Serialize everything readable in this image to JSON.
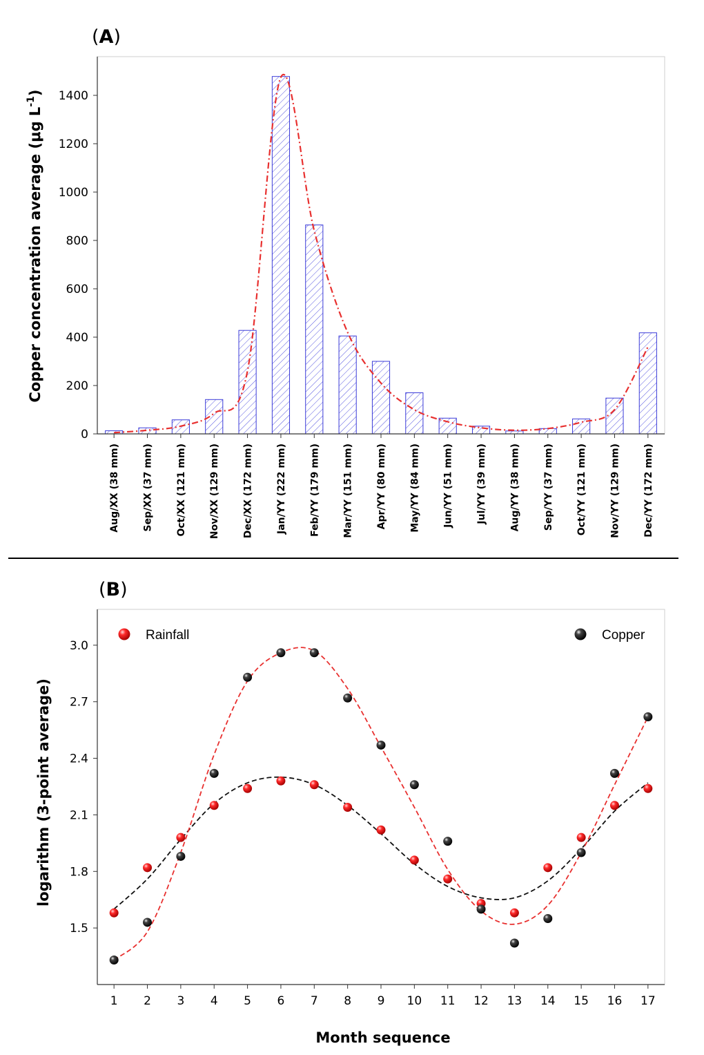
{
  "chart_data": [
    {
      "panel": "A",
      "type": "bar",
      "categories": [
        "Aug/XX (38 mm)",
        "Sep/XX (37 mm)",
        "Oct/XX (121 mm)",
        "Nov/XX (129 mm)",
        "Dec/XX (172 mm)",
        "Jan/YY (222 mm)",
        "Feb/YY (179 mm)",
        "Mar/YY (151 mm)",
        "Apr/YY (80 mm)",
        "May/YY (84 mm)",
        "Jun/YY (51 mm)",
        "Jul/YY (39 mm)",
        "Aug/YY (38 mm)",
        "Sep/YY (37 mm)",
        "Oct/YY (121 mm)",
        "Nov/YY (129 mm)",
        "Dec/YY (172 mm)"
      ],
      "values": [
        13,
        25,
        58,
        142,
        428,
        1478,
        864,
        405,
        300,
        170,
        65,
        32,
        12,
        22,
        62,
        148,
        418
      ],
      "trend": [
        5,
        15,
        32,
        85,
        260,
        1475,
        840,
        420,
        210,
        100,
        50,
        25,
        15,
        22,
        48,
        100,
        360
      ],
      "ylabel": "Copper concentration average (μg L",
      "ylabel_sup": "-1",
      "ylabel_close": ")",
      "ylim": [
        0,
        1560
      ],
      "yticks": [
        0,
        200,
        400,
        600,
        800,
        1000,
        1200,
        1400
      ],
      "colors": {
        "bar": "#3a3ad8",
        "trend": "#e8302f"
      }
    },
    {
      "panel": "B",
      "type": "scatter",
      "x": [
        1,
        2,
        3,
        4,
        5,
        6,
        7,
        8,
        9,
        10,
        11,
        12,
        13,
        14,
        15,
        16,
        17
      ],
      "series": [
        {
          "name": "Rainfall",
          "color": "#ff1a1a",
          "values": [
            1.58,
            1.82,
            1.98,
            2.15,
            2.24,
            2.28,
            2.26,
            2.14,
            2.02,
            1.86,
            1.76,
            1.63,
            1.58,
            1.82,
            1.98,
            2.15,
            2.24
          ],
          "trend_color": "#111111",
          "trend": [
            1.6,
            1.76,
            1.97,
            2.16,
            2.27,
            2.3,
            2.26,
            2.15,
            2.0,
            1.84,
            1.72,
            1.66,
            1.66,
            1.75,
            1.92,
            2.12,
            2.27
          ]
        },
        {
          "name": "Copper",
          "color": "#111111",
          "values": [
            1.33,
            1.53,
            1.88,
            2.32,
            2.83,
            2.96,
            2.96,
            2.72,
            2.47,
            2.26,
            1.96,
            1.6,
            1.42,
            1.55,
            1.9,
            2.32,
            2.62
          ],
          "trend_color": "#e8302f",
          "trend": [
            1.33,
            1.48,
            1.9,
            2.42,
            2.81,
            2.96,
            2.97,
            2.77,
            2.46,
            2.14,
            1.81,
            1.59,
            1.52,
            1.62,
            1.9,
            2.26,
            2.62
          ]
        }
      ],
      "xlabel": "Month sequence",
      "ylabel": "logarithm (3-point average)",
      "xlim": [
        0.5,
        17.5
      ],
      "ylim": [
        1.2,
        3.19
      ],
      "yticks": [
        "1.5",
        "1.8",
        "2.1",
        "2.4",
        "2.7",
        "3.0"
      ],
      "legend": "top-left and top-right"
    }
  ],
  "panels": {
    "a_label": "A",
    "b_label": "B",
    "open_paren": "(",
    "close_paren": ")"
  }
}
